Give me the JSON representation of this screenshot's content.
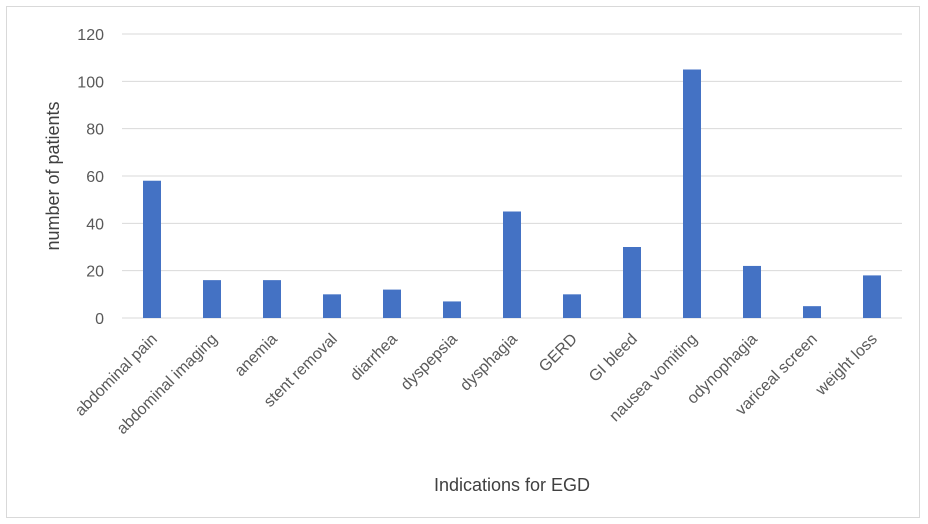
{
  "chart_data": {
    "type": "bar",
    "title": "",
    "xlabel": "Indications for EGD",
    "ylabel": "number of patients",
    "ylim": [
      0,
      120
    ],
    "yticks": [
      0,
      20,
      40,
      60,
      80,
      100,
      120
    ],
    "grid": true,
    "legend": "none",
    "categories": [
      "abdominal pain",
      "abdominal imaging",
      "anemia",
      "stent removal",
      "diarrhea",
      "dyspepsia",
      "dysphagia",
      "GERD",
      "GI bleed",
      "nausea vomiting",
      "odynophagia",
      "variceal screen",
      "weight loss"
    ],
    "values": [
      58,
      16,
      16,
      10,
      12,
      7,
      45,
      10,
      30,
      105,
      22,
      5,
      18
    ],
    "bar_color": "#4472c4",
    "gridline_color": "#d9d9d9"
  }
}
